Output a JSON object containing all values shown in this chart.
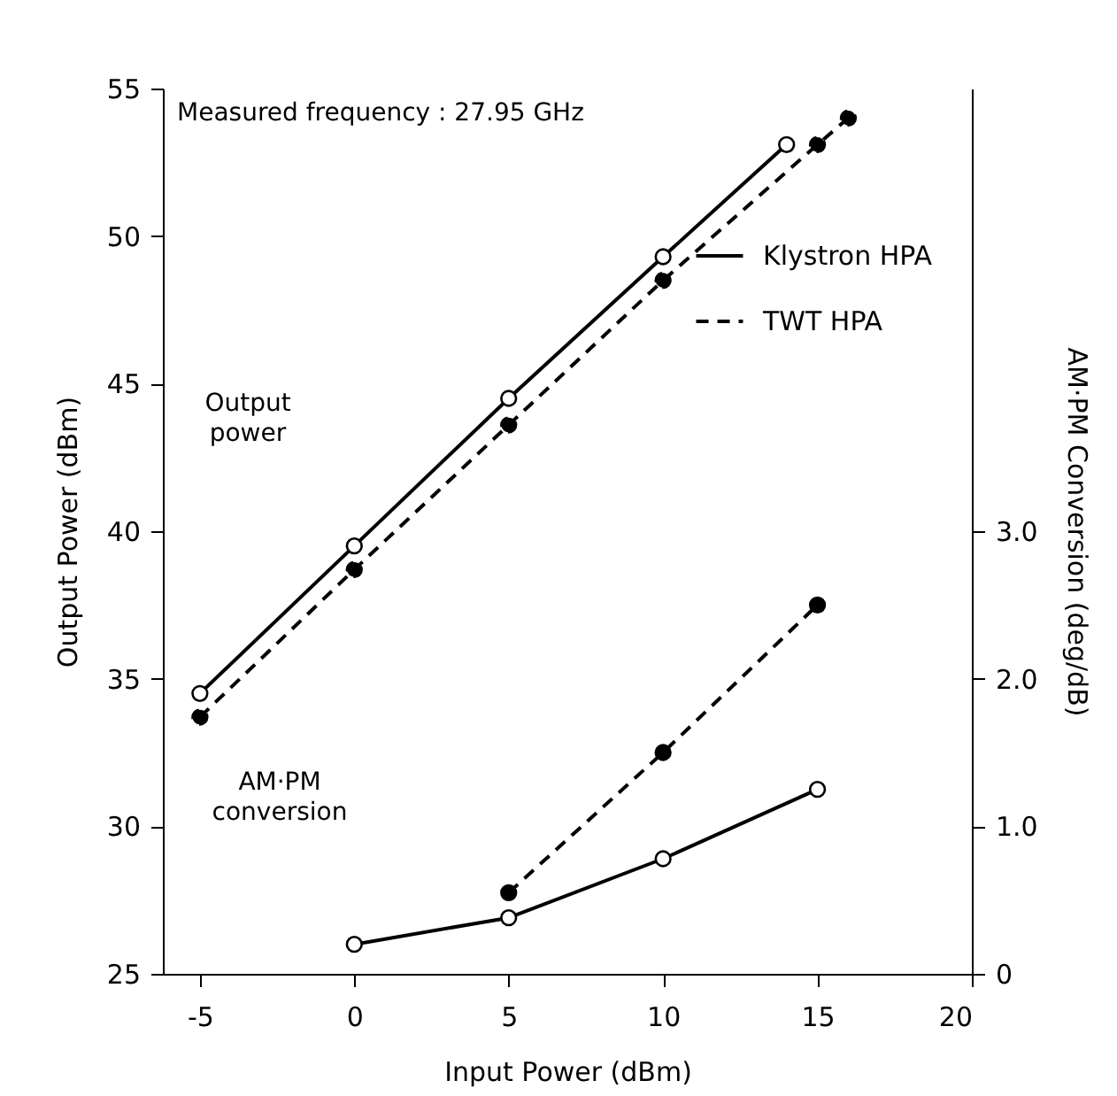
{
  "chart_data": {
    "type": "line",
    "xlabel": "Input Power (dBm)",
    "ylabel": "Output Power (dBm)",
    "y2label": "AM·PM Conversion (deg/dB)",
    "xlim": [
      -6.2,
      20
    ],
    "xticks": [
      -5,
      0,
      5,
      10,
      15,
      20
    ],
    "ylim": [
      25,
      55
    ],
    "yticks": [
      25,
      30,
      35,
      40,
      45,
      50,
      55
    ],
    "y2lim": [
      0,
      6
    ],
    "y2ticks": [
      0,
      {
        "value": 1,
        "label": "1.0"
      },
      {
        "value": 2,
        "label": "2.0"
      },
      {
        "value": 3,
        "label": "3.0"
      }
    ],
    "grid": false,
    "legend": "top right",
    "marker": "circle",
    "annotations": [
      "Measured frequency : 27.95 GHz",
      "Output power",
      "AM·PM conversion"
    ],
    "series": [
      {
        "name": "Klystron HPA",
        "color": "#000000",
        "line_style": "solid",
        "x": [
          -5,
          0,
          5,
          10,
          14
        ],
        "values": [
          34.5,
          39.5,
          44.5,
          49.3,
          53.1
        ]
      },
      {
        "name": "TWT HPA",
        "color": "#000000",
        "line_style": "dashed",
        "x": [
          -5,
          0,
          5,
          10,
          15,
          16
        ],
        "values": [
          33.7,
          38.7,
          43.6,
          48.5,
          53.1,
          54
        ]
      },
      {
        "color": "#000000",
        "line_style": "solid",
        "axis": "y2",
        "x": [
          0,
          5,
          10,
          15
        ],
        "values": [
          0.2,
          0.38,
          0.78,
          1.25
        ]
      },
      {
        "color": "#000000",
        "line_style": "dashed",
        "axis": "y2",
        "x": [
          5,
          10,
          15
        ],
        "values": [
          0.55,
          1.5,
          2.5
        ]
      }
    ]
  }
}
